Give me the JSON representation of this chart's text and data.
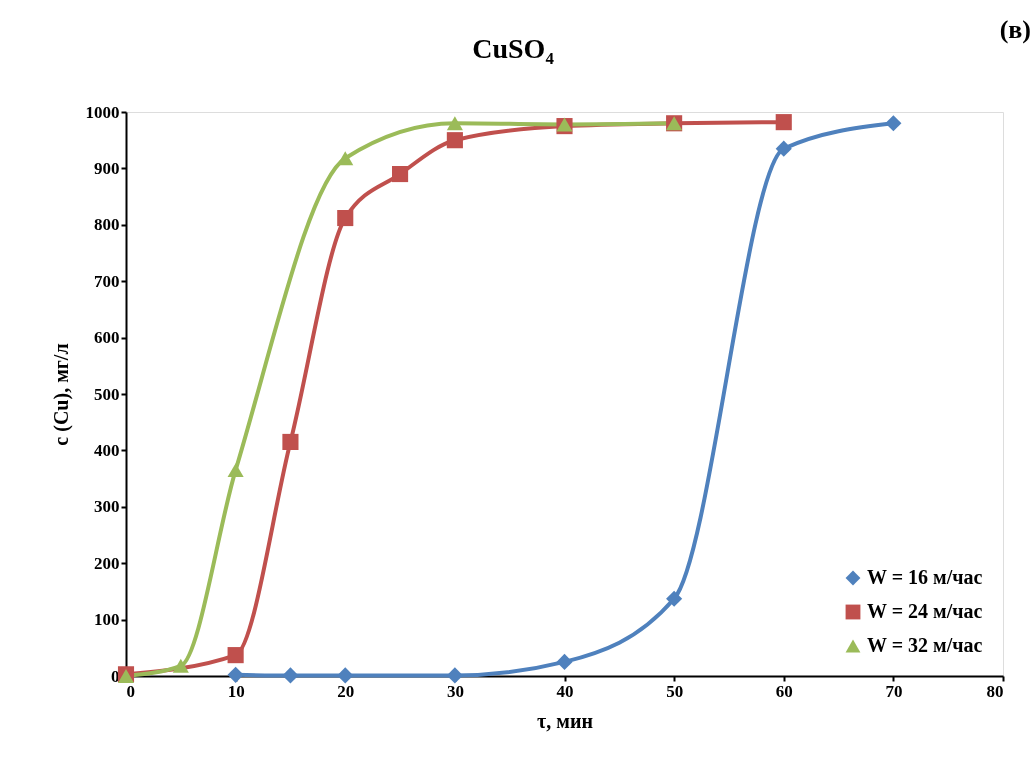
{
  "chart_data": {
    "type": "line",
    "title": "CuSO₄",
    "xlabel": "τ, мин",
    "ylabel": "c (Cu), мг/л",
    "annotations": [
      "(в)"
    ],
    "xlim": [
      0,
      80
    ],
    "xticks": [
      0,
      10,
      20,
      30,
      40,
      50,
      60,
      70,
      80
    ],
    "ylim": [
      0,
      1000
    ],
    "yticks": [
      0,
      100,
      200,
      300,
      400,
      500,
      600,
      700,
      800,
      900,
      {
        "value": 1000,
        "label": "1000"
      }
    ],
    "grid": false,
    "legend": "bottom right",
    "line_style": "solid",
    "series": [
      {
        "name": "W = 16 м/час",
        "color": "#4f81bd",
        "marker": "diamond",
        "x": [
          10,
          15,
          20,
          30,
          40,
          50,
          60,
          70
        ],
        "values": [
          2,
          1,
          1,
          1,
          25,
          137,
          935,
          980
        ]
      },
      {
        "name": "W = 24 м/час",
        "color": "#c0504d",
        "marker": "square",
        "x": [
          0,
          10,
          15,
          20,
          25,
          30,
          40,
          50,
          60
        ],
        "values": [
          3,
          37,
          415,
          812,
          890,
          950,
          975,
          980,
          982
        ]
      },
      {
        "name": "W = 32 м/час",
        "color": "#9bbb59",
        "marker": "triangle",
        "x": [
          0,
          5,
          10,
          20,
          30,
          40,
          50
        ],
        "values": [
          0,
          18,
          365,
          918,
          980,
          978,
          980
        ]
      }
    ]
  }
}
